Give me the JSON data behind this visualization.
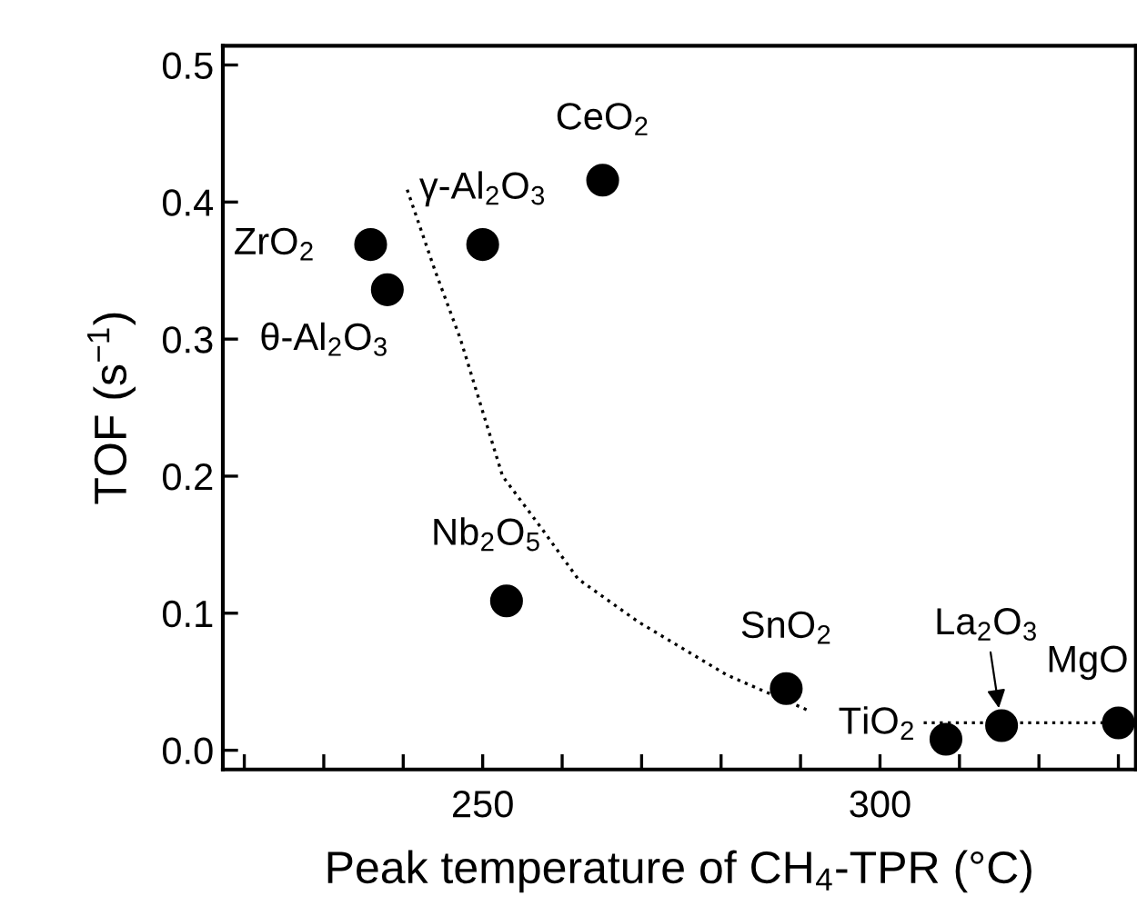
{
  "chart_data": {
    "type": "scatter",
    "xlabel": "Peak temperature of CH$_{4}$-TPR (°C)",
    "ylabel": "TOF (s$^{−1}$)",
    "xlim": [
      217.3,
      332.2
    ],
    "ylim": [
      -0.014,
      0.514
    ],
    "xticks": [
      {
        "value": 220,
        "label": null
      },
      {
        "value": 230,
        "label": null
      },
      {
        "value": 240,
        "label": null
      },
      250,
      {
        "value": 260,
        "label": null
      },
      {
        "value": 270,
        "label": null
      },
      {
        "value": 280,
        "label": null
      },
      {
        "value": 290,
        "label": null
      },
      300,
      {
        "value": 310,
        "label": null
      },
      {
        "value": 320,
        "label": null
      },
      {
        "value": 330,
        "label": null
      }
    ],
    "yticks": [
      {
        "value": 0,
        "label": "0.0"
      },
      0.1,
      0.2,
      0.3,
      0.4,
      0.5
    ],
    "grid": false,
    "legend": false,
    "marker": "circle",
    "series": [
      {
        "color": "#000000",
        "x": [
          235.9,
          238.0,
          250.0,
          265.1,
          253.0,
          288.2,
          308.3,
          315.3,
          330.0
        ],
        "values": [
          0.369,
          0.336,
          0.369,
          0.416,
          0.109,
          0.045,
          0.008,
          0.018,
          0.02
        ]
      },
      {
        "type": "line",
        "color": "#000000",
        "line_style": "dotted",
        "marker": "none",
        "x": [
          240.5,
          244,
          247.2,
          252.5,
          257.4,
          262,
          269.5,
          280.7,
          291.0,
          298,
          305.5,
          330.0
        ],
        "values": [
          0.409,
          0.35,
          0.3,
          0.2,
          0.162,
          0.125,
          0.094,
          0.055,
          0.029,
          null,
          0.02,
          0.02
        ]
      }
    ],
    "annotations": [
      {
        "text": "ZrO$_{2}$",
        "x": 235.9,
        "y": 0.369
      },
      {
        "text": "θ-Al$_{2}$O$_{3}$",
        "x": 238.0,
        "y": 0.336
      },
      {
        "text": "γ-Al$_{2}$O$_{3}$",
        "x": 250.0,
        "y": 0.369
      },
      {
        "text": "CeO$_{2}$",
        "x": 265.1,
        "y": 0.416
      },
      {
        "text": "Nb$_{2}$O$_{5}$",
        "x": 253.0,
        "y": 0.109
      },
      {
        "text": "SnO$_{2}$",
        "x": 288.2,
        "y": 0.045
      },
      {
        "text": "TiO$_{2}$",
        "x": 308.3,
        "y": 0.008
      },
      {
        "text": "La$_{2}$O$_{3}$",
        "x": 315.3,
        "y": 0.018
      },
      {
        "text": "MgO",
        "x": 330.0,
        "y": 0.02
      }
    ]
  }
}
